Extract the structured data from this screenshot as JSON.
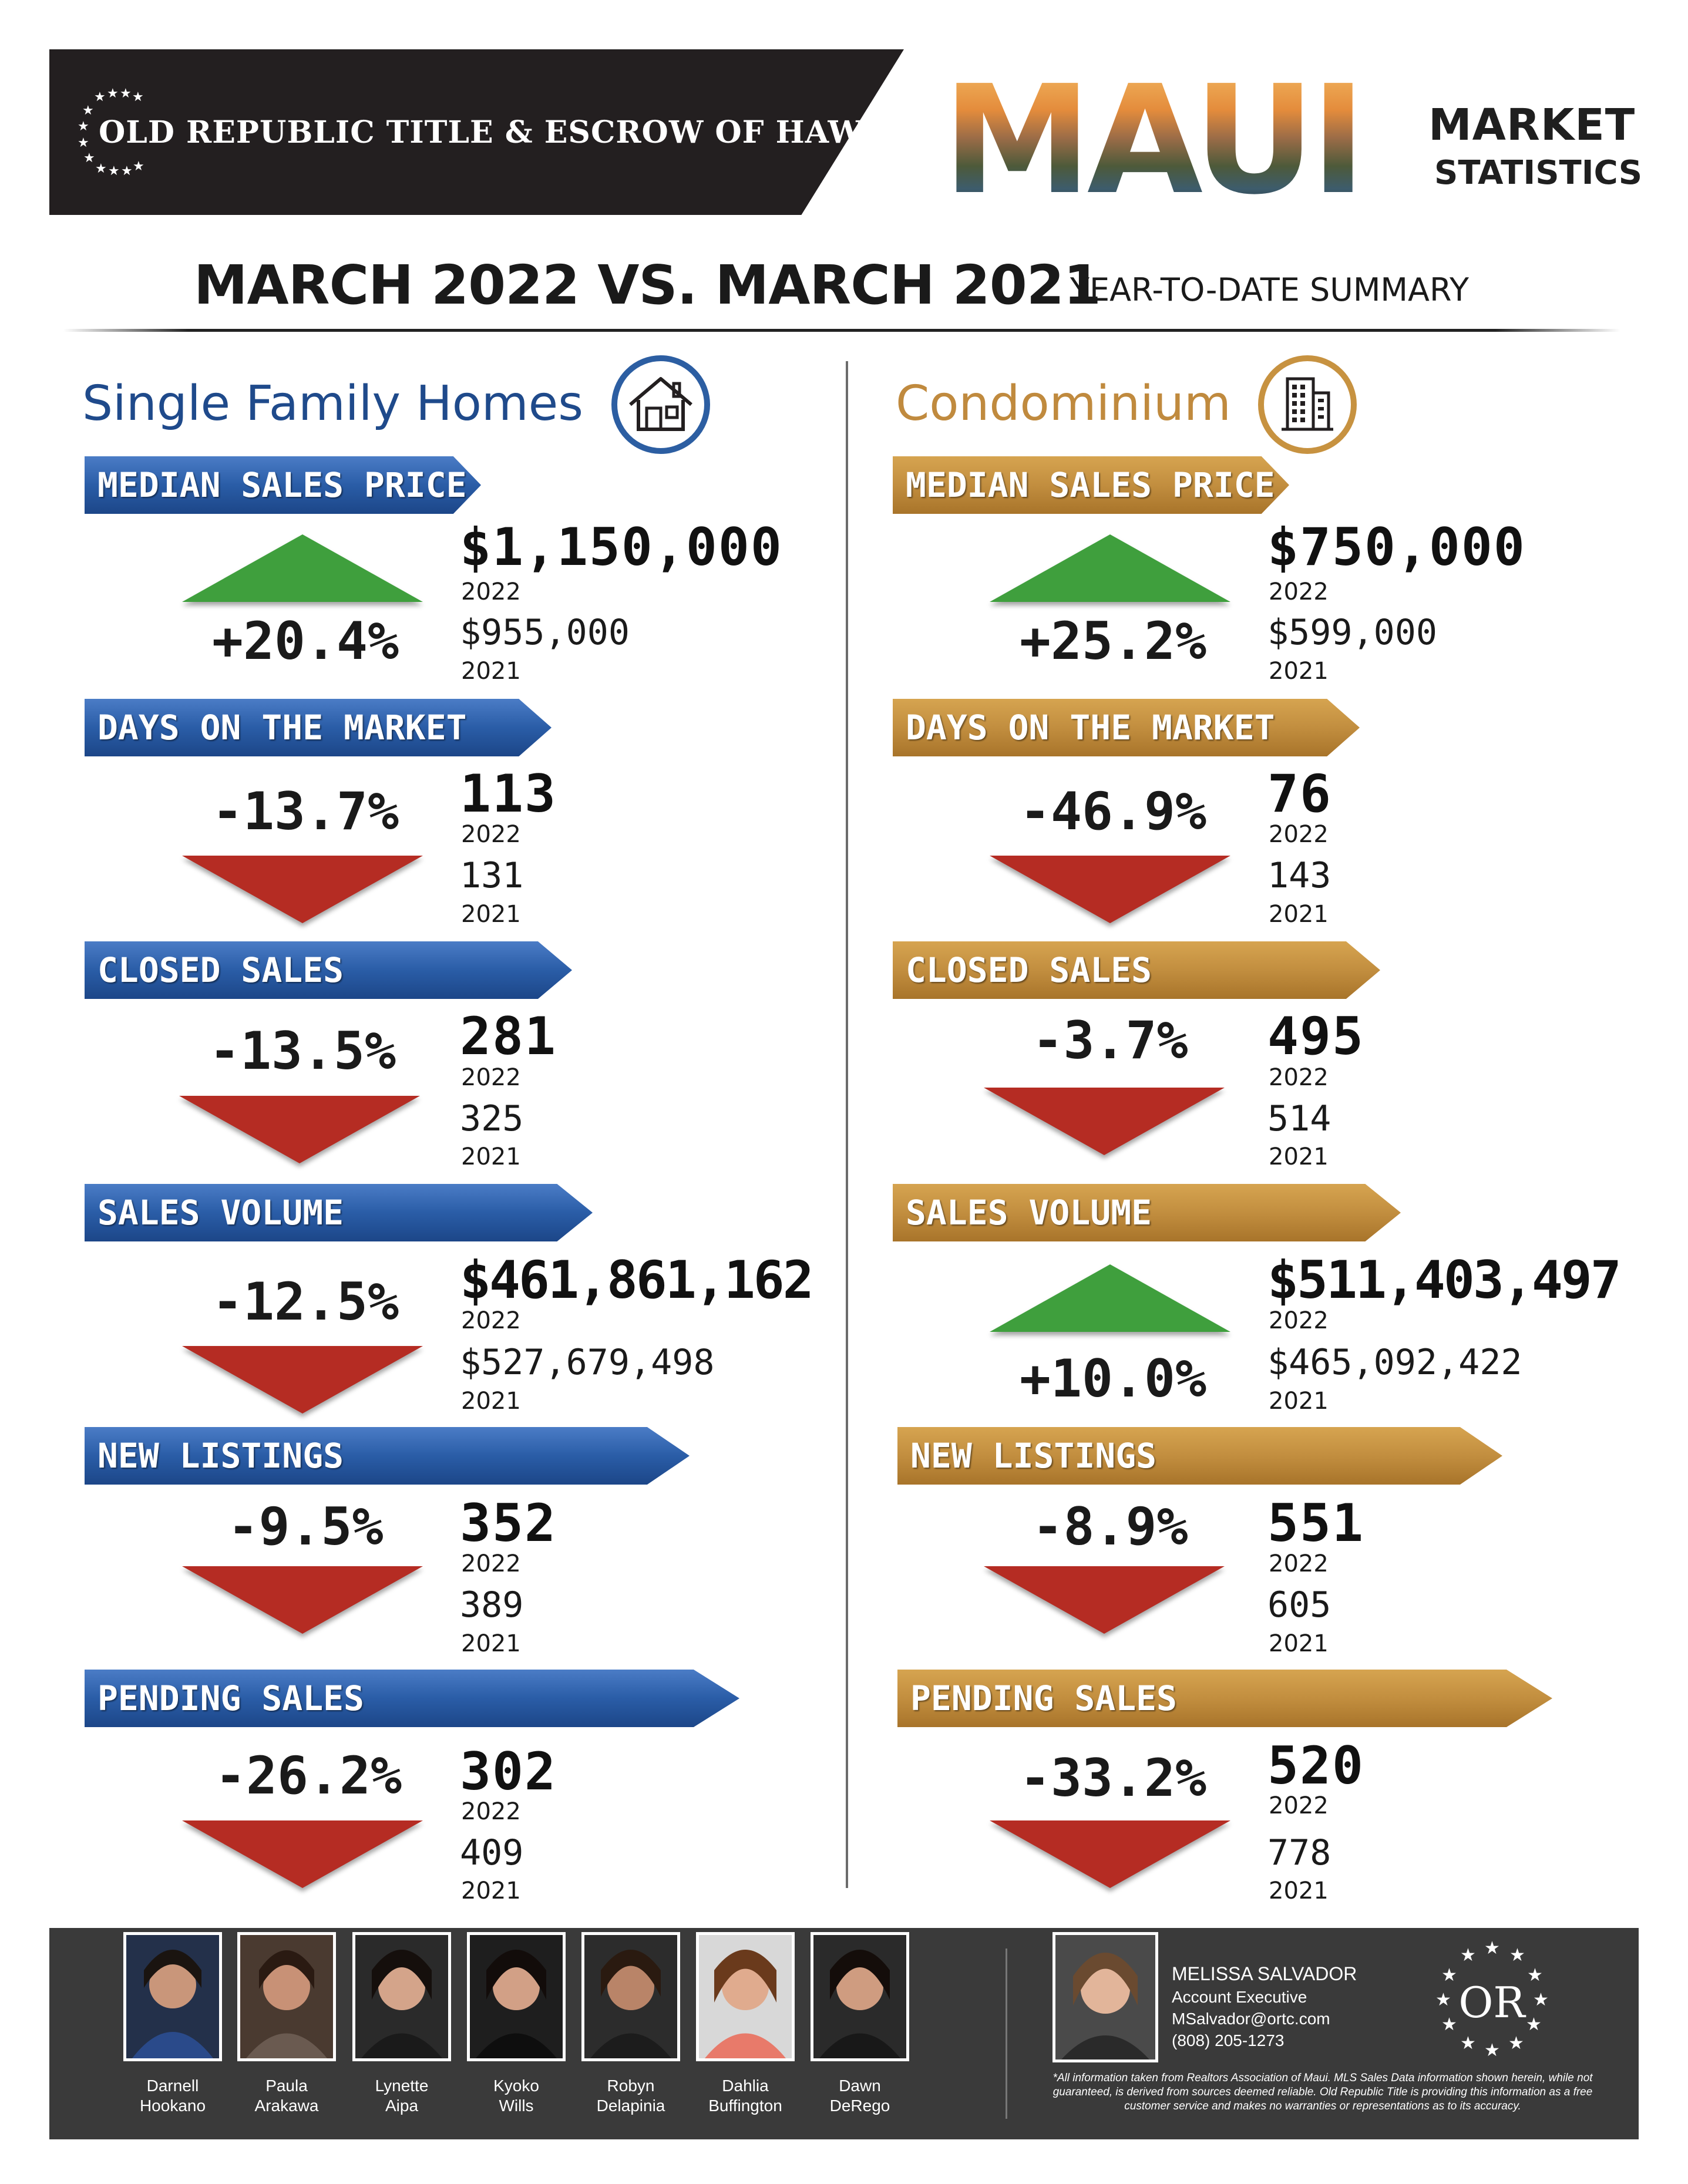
{
  "header": {
    "company": "OLD REPUBLIC TITLE & ESCROW OF HAWAII",
    "region_title": "MAUI",
    "market_word": "MARKET",
    "statistics_word": "STATISTICS",
    "comparison": "MARCH 2022 VS. MARCH 2021",
    "summary_label": "YEAR-TO-DATE SUMMARY"
  },
  "colors": {
    "blue": "#2a5da7",
    "gold": "#c28e3f",
    "up": "#3f9f3d",
    "down": "#b52c23",
    "dark": "#231f20"
  },
  "single_family": {
    "title": "Single Family Homes",
    "icon": "house-icon",
    "metrics": [
      {
        "label": "MEDIAN SALES PRICE",
        "direction": "up",
        "change": "+20.4%",
        "current": "$1,150,000",
        "current_year": "2022",
        "previous": "$955,000",
        "previous_year": "2021"
      },
      {
        "label": "DAYS ON THE MARKET",
        "direction": "down",
        "change": "-13.7%",
        "current": "113",
        "current_year": "2022",
        "previous": "131",
        "previous_year": "2021"
      },
      {
        "label": "CLOSED SALES",
        "direction": "down",
        "change": "-13.5%",
        "current": "281",
        "current_year": "2022",
        "previous": "325",
        "previous_year": "2021"
      },
      {
        "label": "SALES VOLUME",
        "direction": "down",
        "change": "-12.5%",
        "current": "$461,861,162",
        "current_year": "2022",
        "previous": "$527,679,498",
        "previous_year": "2021"
      },
      {
        "label": "NEW LISTINGS",
        "direction": "down",
        "change": "-9.5%",
        "current": "352",
        "current_year": "2022",
        "previous": "389",
        "previous_year": "2021"
      },
      {
        "label": "PENDING SALES",
        "direction": "down",
        "change": "-26.2%",
        "current": "302",
        "current_year": "2022",
        "previous": "409",
        "previous_year": "2021"
      }
    ]
  },
  "condominium": {
    "title": "Condominium",
    "icon": "building-icon",
    "metrics": [
      {
        "label": "MEDIAN SALES PRICE",
        "direction": "up",
        "change": "+25.2%",
        "current": "$750,000",
        "current_year": "2022",
        "previous": "$599,000",
        "previous_year": "2021"
      },
      {
        "label": "DAYS ON THE MARKET",
        "direction": "down",
        "change": "-46.9%",
        "current": "76",
        "current_year": "2022",
        "previous": "143",
        "previous_year": "2021"
      },
      {
        "label": "CLOSED SALES",
        "direction": "down",
        "change": "-3.7%",
        "current": "495",
        "current_year": "2022",
        "previous": "514",
        "previous_year": "2021"
      },
      {
        "label": "SALES VOLUME",
        "direction": "up",
        "change": "+10.0%",
        "current": "$511,403,497",
        "current_year": "2022",
        "previous": "$465,092,422",
        "previous_year": "2021"
      },
      {
        "label": "NEW LISTINGS",
        "direction": "down",
        "change": "-8.9%",
        "current": "551",
        "current_year": "2022",
        "previous": "605",
        "previous_year": "2021"
      },
      {
        "label": "PENDING SALES",
        "direction": "down",
        "change": "-33.2%",
        "current": "520",
        "current_year": "2022",
        "previous": "778",
        "previous_year": "2021"
      }
    ]
  },
  "footer": {
    "team": [
      {
        "first": "Darnell",
        "last": "Hookano"
      },
      {
        "first": "Paula",
        "last": "Arakawa"
      },
      {
        "first": "Lynette",
        "last": "Aipa"
      },
      {
        "first": "Kyoko",
        "last": "Wills"
      },
      {
        "first": "Robyn",
        "last": "Delapinia"
      },
      {
        "first": "Dahlia",
        "last": "Buffington"
      },
      {
        "first": "Dawn",
        "last": "DeRego"
      }
    ],
    "executive": {
      "name": "MELISSA SALVADOR",
      "title": "Account Executive",
      "email": "MSalvador@ortc.com",
      "phone": "(808) 205-1273"
    },
    "logo_letters": "OR",
    "disclaimer": "*All information taken from Realtors Association of Maui. MLS Sales Data information shown herein, while not guaranteed, is derived from sources deemed reliable. Old Republic Title is providing this information as a free customer service and makes no warranties or representations as to its accuracy."
  }
}
